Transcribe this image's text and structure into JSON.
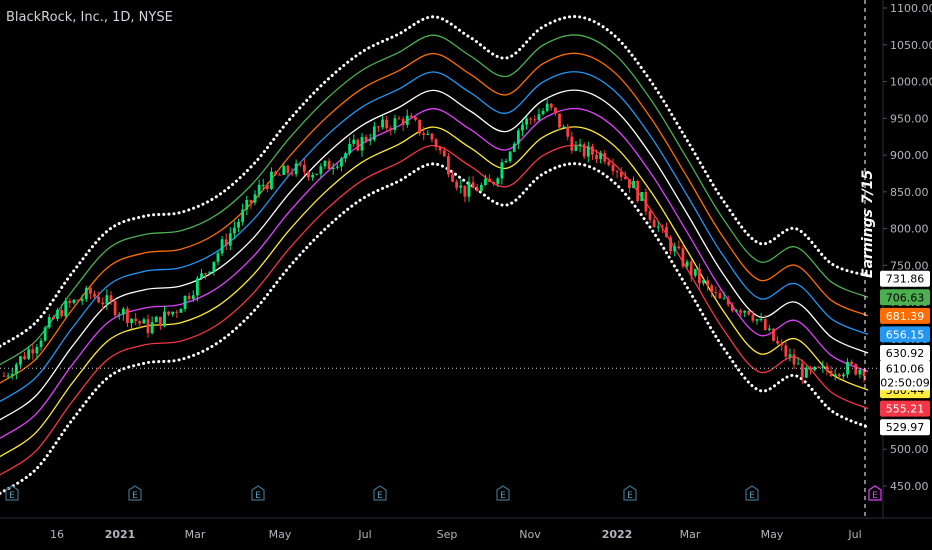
{
  "chart_data": {
    "type": "candlestick-with-bands",
    "title": "BlackRock, Inc., 1D, NYSE",
    "ylim": [
      450,
      1100
    ],
    "y_ticks": [
      "1100.00",
      "1050.00",
      "1000.00",
      "950.00",
      "900.00",
      "850.00",
      "800.00",
      "750.00",
      "700.00",
      "650.00",
      "600.00",
      "550.00",
      "500.00",
      "450.00"
    ],
    "x_ticks": [
      "16",
      "2021",
      "Mar",
      "May",
      "Jul",
      "Sep",
      "Nov",
      "2022",
      "Mar",
      "May",
      "Jul"
    ],
    "x_tick_bold": [
      "2021",
      "2022"
    ],
    "annotation": "Earnings 7/15",
    "current_price": 610.06,
    "countdown": "02:50:09",
    "bands": [
      {
        "name": "white-dotted-top",
        "color": "#ffffff",
        "dotted": true,
        "tag": null,
        "values": [
          640,
          673,
          740,
          798,
          817,
          822,
          844,
          887,
          948,
          1000,
          1040,
          1064,
          1088,
          1060,
          1032,
          1074,
          1088,
          1062,
          1000,
          920,
          838,
          780,
          800,
          752,
          736
        ]
      },
      {
        "name": "green",
        "color": "#4caf50",
        "dotted": false,
        "tag": "706.63",
        "values": [
          615,
          648,
          715,
          773,
          792,
          797,
          819,
          862,
          923,
          975,
          1015,
          1039,
          1063,
          1035,
          1007,
          1049,
          1063,
          1037,
          975,
          895,
          813,
          755,
          775,
          727,
          706.63
        ]
      },
      {
        "name": "orange",
        "color": "#ff6d00",
        "dotted": false,
        "tag": "681.39",
        "values": [
          590,
          623,
          690,
          748,
          767,
          772,
          794,
          837,
          898,
          950,
          990,
          1014,
          1038,
          1010,
          982,
          1024,
          1038,
          1012,
          950,
          870,
          788,
          730,
          750,
          702,
          681.39
        ]
      },
      {
        "name": "blue",
        "color": "#2196f3",
        "dotted": false,
        "tag": "656.15",
        "values": [
          565,
          598,
          665,
          723,
          742,
          747,
          769,
          812,
          873,
          925,
          965,
          989,
          1013,
          985,
          957,
          999,
          1013,
          987,
          925,
          845,
          763,
          705,
          725,
          677,
          656.15
        ]
      },
      {
        "name": "white",
        "color": "#ffffff",
        "dotted": false,
        "tag": "630.92",
        "values": [
          540,
          573,
          640,
          698,
          717,
          722,
          744,
          787,
          848,
          900,
          940,
          964,
          988,
          960,
          932,
          974,
          988,
          962,
          900,
          820,
          738,
          680,
          700,
          652,
          630.92
        ]
      },
      {
        "name": "magenta",
        "color": "#e040fb",
        "dotted": false,
        "tag": "605.68",
        "values": [
          515,
          548,
          615,
          673,
          692,
          697,
          719,
          762,
          823,
          875,
          915,
          939,
          963,
          935,
          907,
          949,
          963,
          937,
          875,
          795,
          713,
          655,
          675,
          627,
          605.68
        ]
      },
      {
        "name": "yellow",
        "color": "#ffeb3b",
        "dotted": false,
        "tag": "580.44",
        "values": [
          490,
          523,
          590,
          648,
          667,
          672,
          694,
          737,
          798,
          850,
          890,
          914,
          938,
          910,
          882,
          924,
          938,
          912,
          850,
          770,
          688,
          630,
          650,
          602,
          580.44
        ]
      },
      {
        "name": "red",
        "color": "#f23645",
        "dotted": false,
        "tag": "555.21",
        "values": [
          465,
          498,
          565,
          623,
          642,
          647,
          669,
          712,
          773,
          825,
          865,
          889,
          913,
          885,
          857,
          899,
          913,
          887,
          825,
          745,
          663,
          605,
          625,
          577,
          555.21
        ]
      },
      {
        "name": "white-dotted-bottom",
        "color": "#ffffff",
        "dotted": true,
        "tag": "529.97",
        "values": [
          440,
          473,
          540,
          598,
          617,
          622,
          644,
          687,
          748,
          800,
          840,
          864,
          888,
          860,
          832,
          874,
          888,
          862,
          800,
          720,
          638,
          580,
          600,
          552,
          529.97
        ]
      }
    ],
    "price_path": [
      600,
      640,
      690,
      712,
      690,
      665,
      690,
      740,
      800,
      860,
      880,
      878,
      905,
      935,
      950,
      920,
      850,
      860,
      940,
      965,
      905,
      900,
      855,
      790,
      740,
      700,
      690,
      640,
      600,
      610,
      610
    ],
    "extra_tags": [
      {
        "value": "731.86",
        "color": "#ffffff"
      }
    ]
  }
}
